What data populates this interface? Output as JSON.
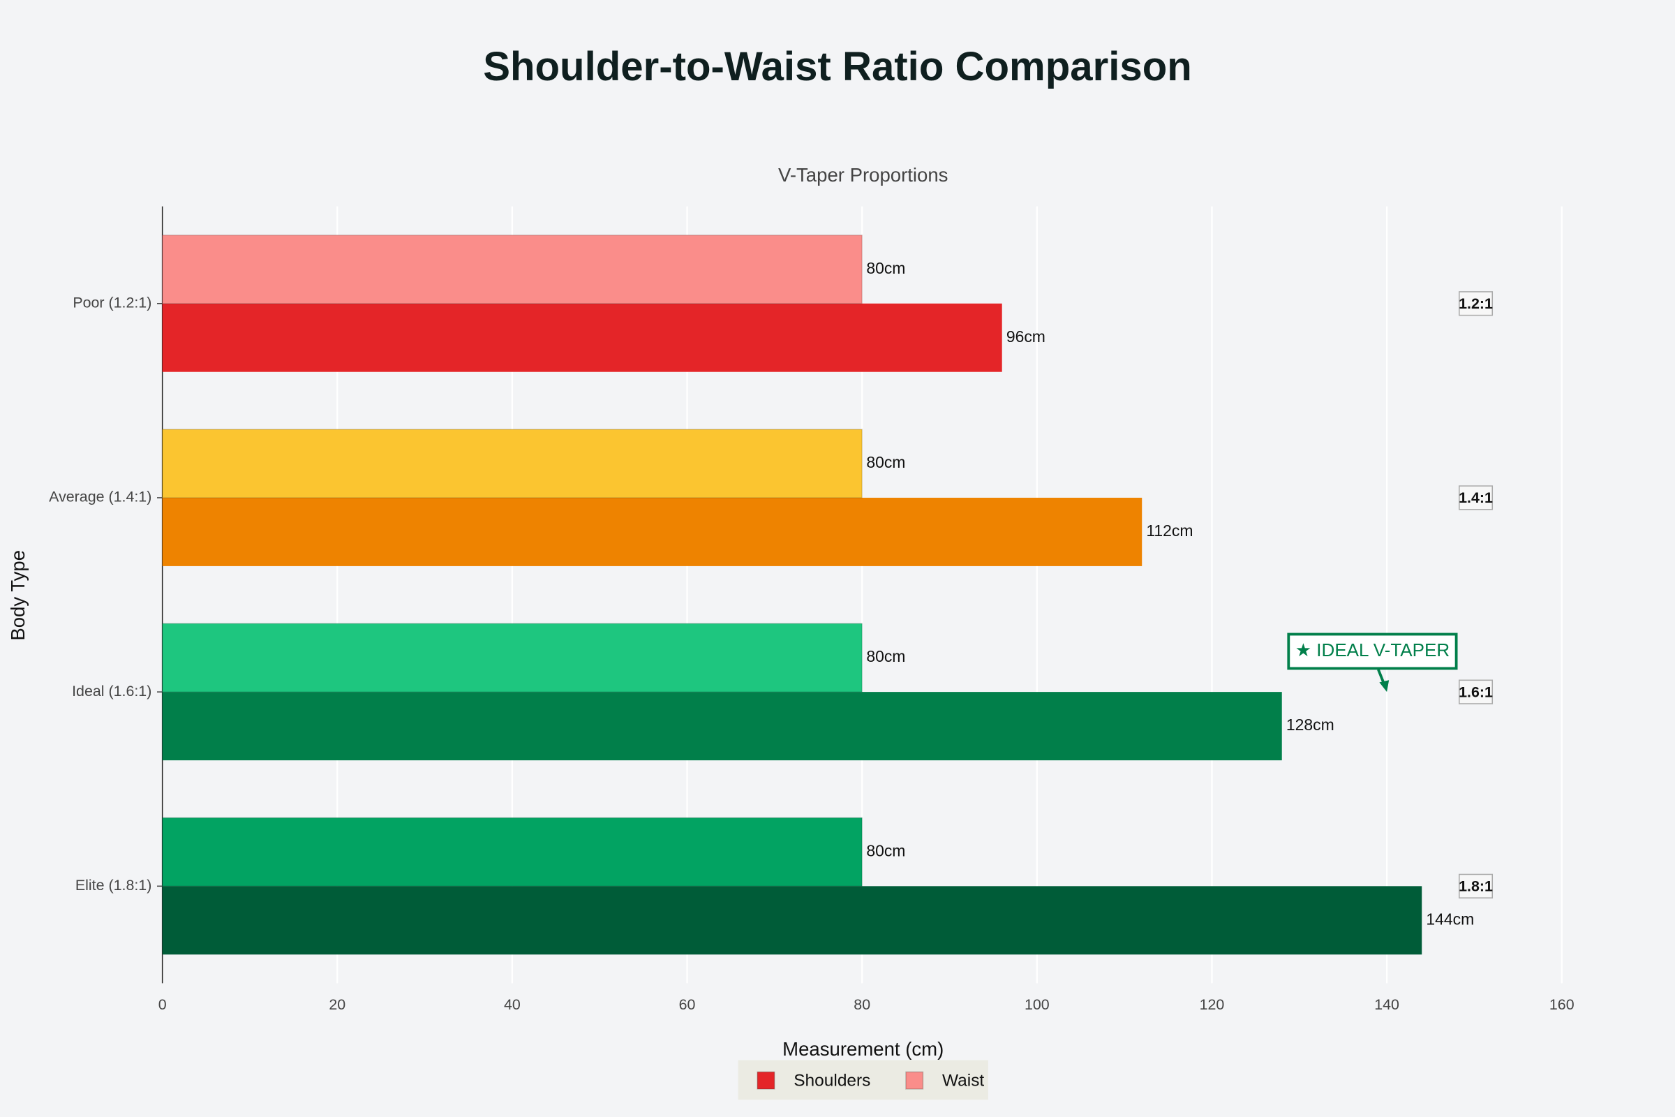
{
  "chart_data": {
    "type": "bar",
    "orientation": "horizontal",
    "title": "Shoulder-to-Waist Ratio Comparison",
    "subtitle": "V-Taper Proportions",
    "x_label": "Measurement (cm)",
    "y_label": "Body Type",
    "categories": [
      "Poor (1.2:1)",
      "Average (1.4:1)",
      "Ideal (1.6:1)",
      "Elite (1.8:1)"
    ],
    "series": [
      {
        "name": "Shoulders",
        "color": "#e42528",
        "colors": [
          "#e42528",
          "#ee8300",
          "#017f4a",
          "#005c38"
        ],
        "values": [
          96,
          112,
          128,
          144
        ],
        "value_labels": [
          "96cm",
          "112cm",
          "128cm",
          "144cm"
        ]
      },
      {
        "name": "Waist",
        "color": "#fa8d8a",
        "colors": [
          "#fa8d8a",
          "#fbc530",
          "#1ec67f",
          "#02a362"
        ],
        "values": [
          80,
          80,
          80,
          80
        ],
        "value_labels": [
          "80cm",
          "80cm",
          "80cm",
          "80cm"
        ]
      }
    ],
    "ratio_labels": [
      "1.2:1",
      "1.4:1",
      "1.6:1",
      "1.8:1"
    ],
    "annotation": {
      "text": "★ IDEAL V-TAPER",
      "x": 140,
      "y": "Ideal (1.6:1)",
      "color": "#017f4a"
    },
    "xlim": [
      0,
      160
    ],
    "xticks": [
      0,
      20,
      40,
      60,
      80,
      100,
      120,
      140,
      160
    ],
    "grid": true,
    "legend": "bottom"
  }
}
